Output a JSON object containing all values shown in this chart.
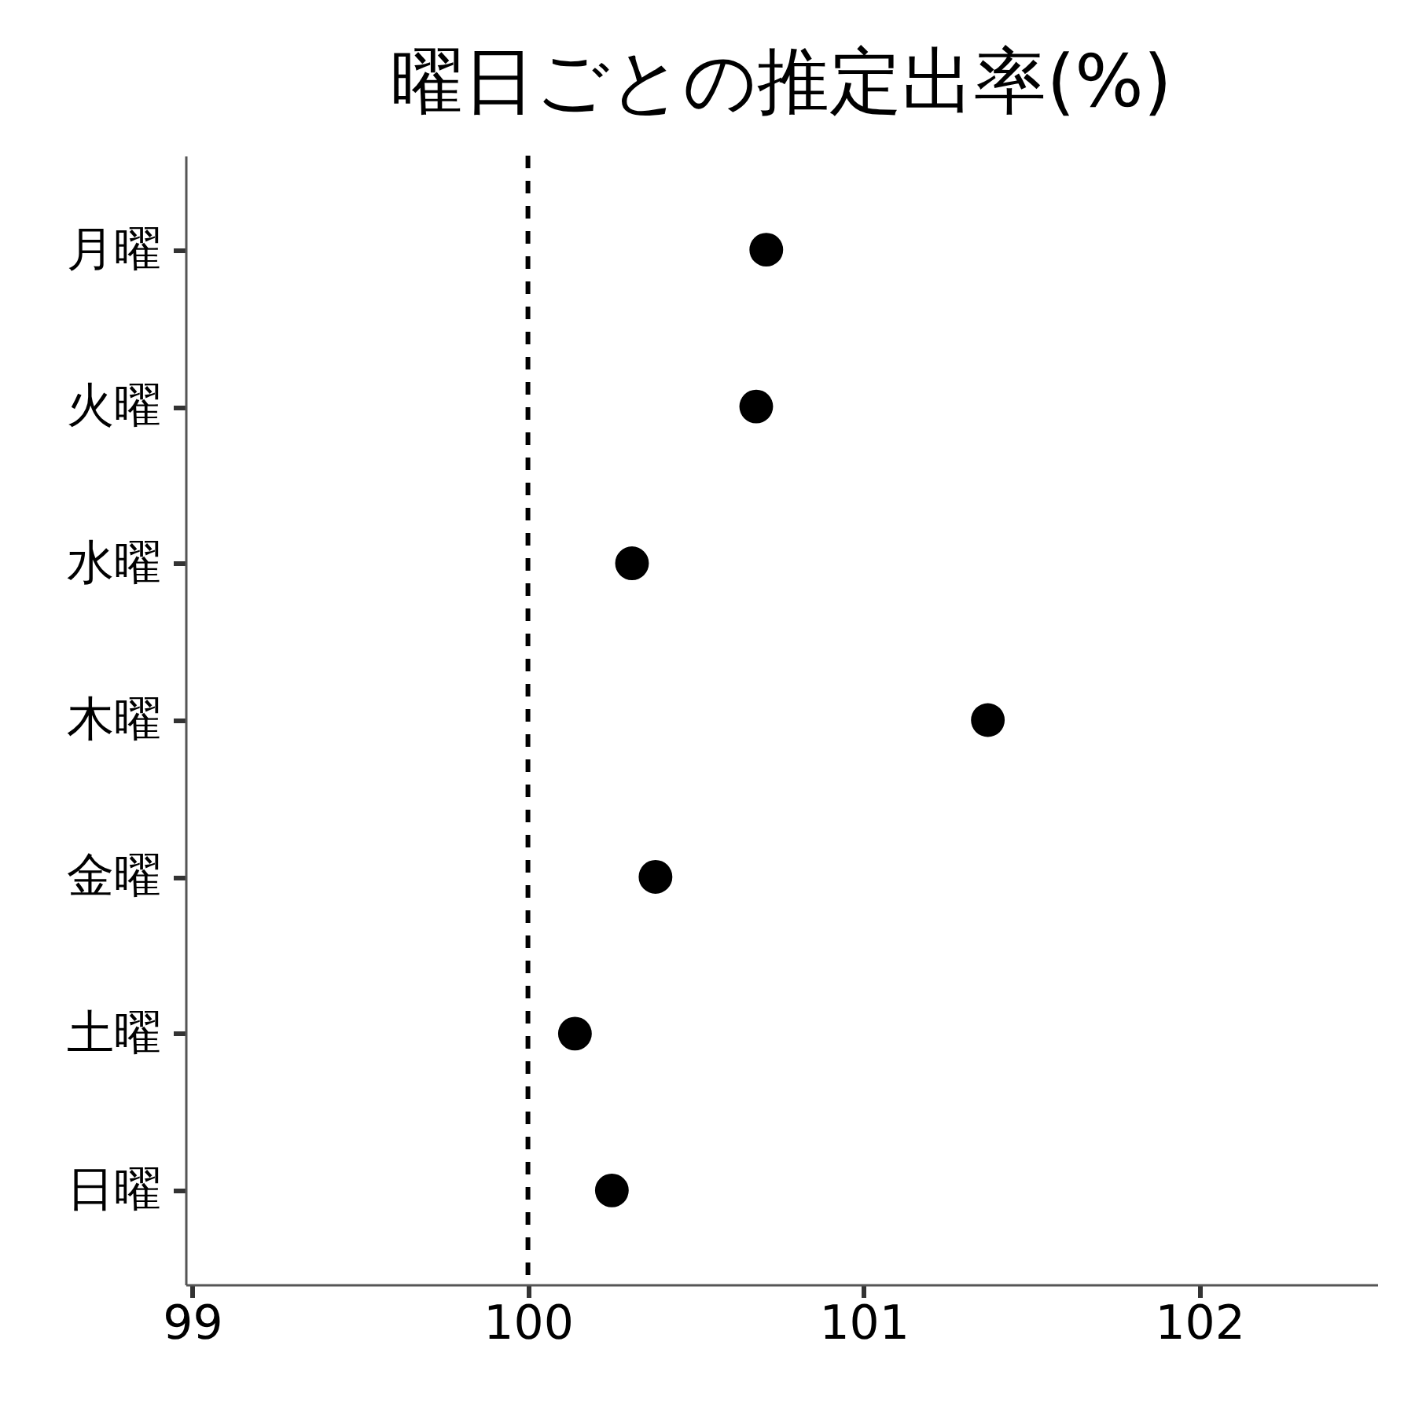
{
  "chart_data": {
    "type": "scatter",
    "title": "曜日ごとの推定出率(%)",
    "orientation": "horizontal",
    "categories": [
      "月曜",
      "火曜",
      "水曜",
      "木曜",
      "金曜",
      "土曜",
      "日曜"
    ],
    "series": [
      {
        "color": "#000000",
        "values": [
          100.71,
          100.68,
          100.31,
          101.37,
          100.38,
          100.14,
          100.25
        ]
      }
    ],
    "xlim": [
      98.98,
      102.53
    ],
    "xticks": [
      99,
      100,
      101,
      102
    ],
    "marker": "circle",
    "grid": false,
    "ref_lines": [
      {
        "axis": "x",
        "value": 100,
        "color": "#000000",
        "line_style": "dashed"
      }
    ]
  }
}
